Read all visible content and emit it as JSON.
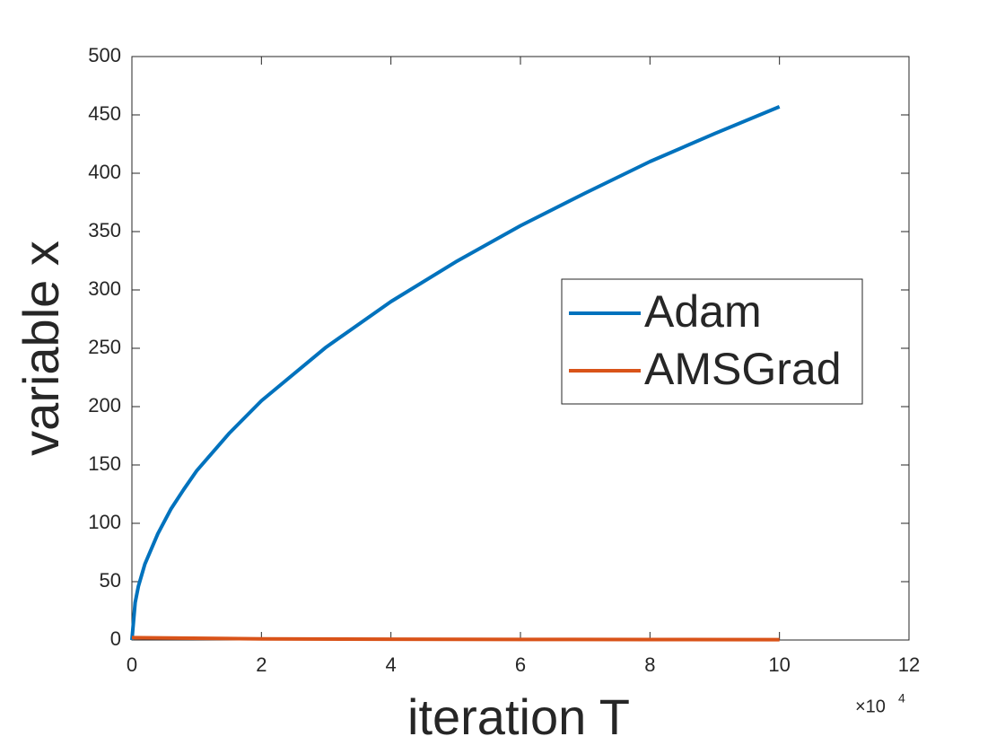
{
  "chart_data": {
    "type": "line",
    "xlabel": "iteration T",
    "ylabel": "variable x",
    "x_exponent_base": "×10",
    "x_exponent": "4",
    "xlim": [
      0,
      12
    ],
    "xticks": [
      0,
      2,
      4,
      6,
      8,
      10,
      12
    ],
    "ylim": [
      0,
      500
    ],
    "yticks": [
      0,
      50,
      100,
      150,
      200,
      250,
      300,
      350,
      400,
      450,
      500
    ],
    "grid": false,
    "legend": "right",
    "series": [
      {
        "name": "Adam",
        "color": "#0072BD",
        "x": [
          0,
          0.05,
          0.1,
          0.2,
          0.4,
          0.6,
          0.8,
          1,
          1.5,
          2,
          3,
          4,
          5,
          6,
          7,
          8,
          9,
          10
        ],
        "values": [
          0,
          32,
          46,
          65,
          91,
          112,
          129,
          145,
          177,
          205,
          251,
          290,
          324,
          355,
          383,
          410,
          434,
          457
        ]
      },
      {
        "name": "AMSGrad",
        "color": "#D95319",
        "x": [
          0,
          2,
          4,
          6,
          8,
          10
        ],
        "values": [
          2,
          1,
          0.7,
          0.5,
          0.4,
          0.3
        ]
      }
    ]
  }
}
